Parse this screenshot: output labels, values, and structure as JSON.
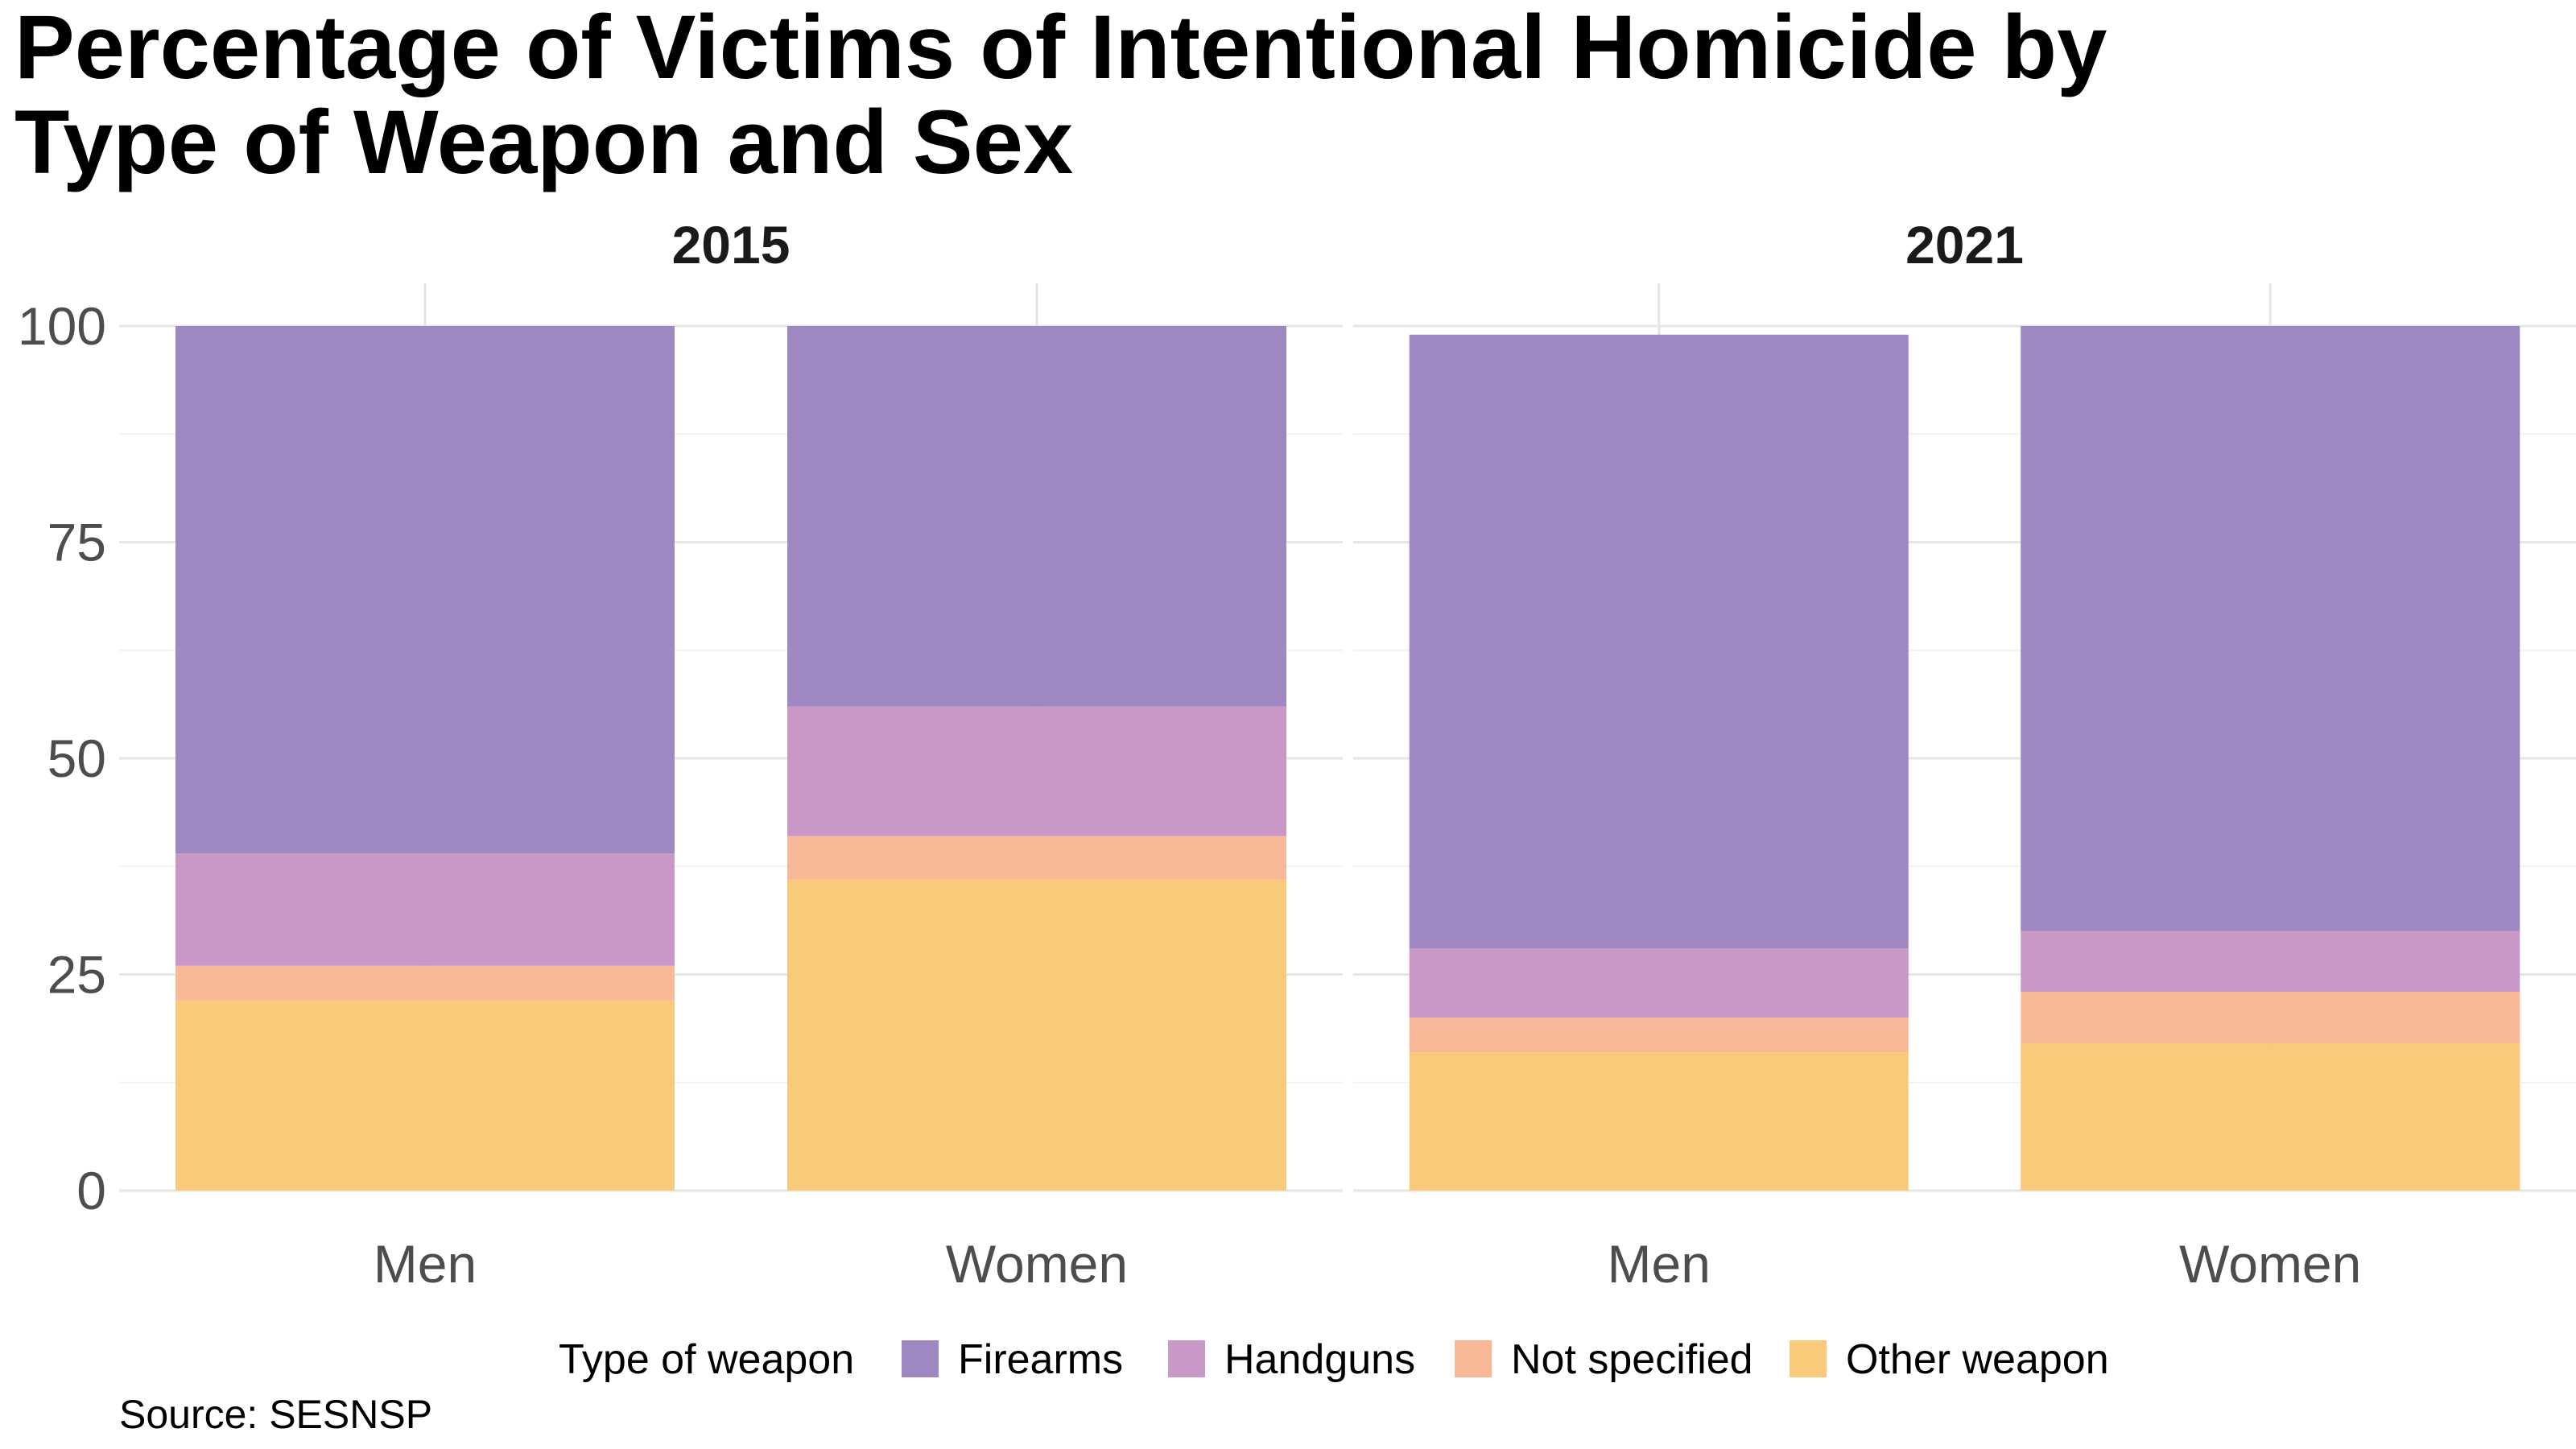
{
  "chart_data": {
    "type": "bar",
    "stacked": true,
    "title_lines": [
      "Percentage of Victims of Intentional Homicide by",
      "Type of Weapon and Sex"
    ],
    "caption": "Source: SESNSP",
    "ylim": [
      0,
      100
    ],
    "yticks": [
      0,
      25,
      50,
      75,
      100
    ],
    "grid": true,
    "legend_title": "Type of weapon",
    "legend_position": "bottom",
    "categories": [
      "Men",
      "Women"
    ],
    "series": [
      {
        "name": "Other weapon",
        "color": "#F8CA7A"
      },
      {
        "name": "Not specified",
        "color": "#F9B897"
      },
      {
        "name": "Handguns",
        "color": "#C998C6"
      },
      {
        "name": "Firearms",
        "color": "#9F87C2"
      }
    ],
    "legend_order": [
      "Firearms",
      "Handguns",
      "Not specified",
      "Other weapon"
    ],
    "panels": [
      {
        "label": "2015",
        "values": {
          "Other weapon": [
            22,
            36
          ],
          "Not specified": [
            4,
            5
          ],
          "Handguns": [
            13,
            15
          ],
          "Firearms": [
            61,
            44
          ]
        }
      },
      {
        "label": "2021",
        "values": {
          "Other weapon": [
            16,
            17
          ],
          "Not specified": [
            4,
            6
          ],
          "Handguns": [
            8,
            7
          ],
          "Firearms": [
            71,
            70
          ]
        }
      }
    ]
  }
}
